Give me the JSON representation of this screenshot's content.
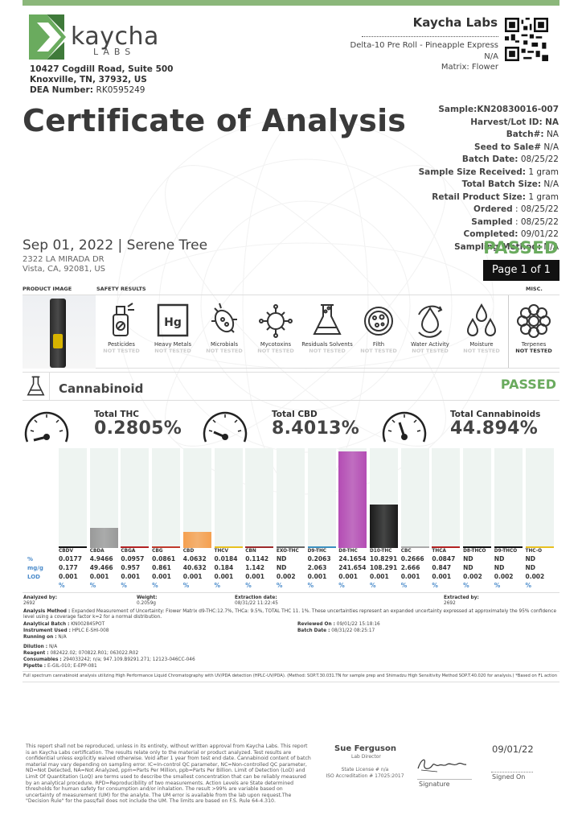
{
  "header": {
    "logo_name": "kaycha",
    "logo_sub": "LABS",
    "address_line1": "10427 Cogdill Road, Suite 500",
    "address_line2": "Knoxville, TN, 37932, US",
    "dea_label": "DEA Number:",
    "dea_value": "RK0595249",
    "lab_name": "Kaycha Labs",
    "product_name": "Delta-10 Pre Roll - Pineapple Express",
    "product_na": "N/A",
    "matrix": "Matrix: Flower"
  },
  "title": "Certificate of Analysis",
  "meta": {
    "sample": "Sample:KN20830016-007",
    "harvest_k": "Harvest/Lot ID:",
    "harvest_v": "NA",
    "batch_k": "Batch#:",
    "batch_v": "NA",
    "seed_k": "Seed to Sale#",
    "seed_v": "N/A",
    "batchdate_k": "Batch Date:",
    "batchdate_v": "08/25/22",
    "ssr_k": "Sample Size Received:",
    "ssr_v": "1 gram",
    "tbs_k": "Total Batch Size:",
    "tbs_v": "N/A",
    "rps_k": "Retail Product Size:",
    "rps_v": "1 gram",
    "ordered_k": "Ordered",
    "ordered_v": ": 08/25/22",
    "sampled_k": "Sampled",
    "sampled_v": ": 08/25/22",
    "completed_k": "Completed:",
    "completed_v": "09/01/22",
    "method_k": "Sampling Method:",
    "method_v": "N/A"
  },
  "client": {
    "title": "Sep 01, 2022 | Serene Tree",
    "addr1": "2322 LA MIRADA DR",
    "addr2": "Vista, CA, 92081, US"
  },
  "status": "PASSED",
  "page": "Page 1 of 1",
  "sections": {
    "product_image": "PRODUCT IMAGE",
    "safety": "SAFETY RESULTS",
    "misc": "MISC."
  },
  "safety_items": [
    {
      "name": "Pesticides",
      "status": "NOT TESTED",
      "icon": "spray-bottle-icon"
    },
    {
      "name": "Heavy Metals",
      "status": "NOT TESTED",
      "icon": "hg-element-icon"
    },
    {
      "name": "Microbials",
      "status": "NOT TESTED",
      "icon": "bacteria-icon"
    },
    {
      "name": "Mycotoxins",
      "status": "NOT TESTED",
      "icon": "virus-icon"
    },
    {
      "name": "Residuals Solvents",
      "status": "NOT TESTED",
      "icon": "flask-icon"
    },
    {
      "name": "Filth",
      "status": "NOT TESTED",
      "icon": "petri-dish-icon"
    },
    {
      "name": "Water Activity",
      "status": "NOT TESTED",
      "icon": "water-drop-icon"
    },
    {
      "name": "Moisture",
      "status": "NOT TESTED",
      "icon": "drops-icon"
    }
  ],
  "misc_item": {
    "name": "Terpenes",
    "status": "NOT TESTED",
    "icon": "flower-icon"
  },
  "cannabinoid": {
    "title": "Cannabinoid",
    "status": "PASSED",
    "total_thc_label": "Total THC",
    "total_thc": "0.2805%",
    "total_cbd_label": "Total CBD",
    "total_cbd": "8.4013%",
    "total_cann_label": "Total Cannabinoids",
    "total_cann": "44.894%"
  },
  "chart_data": {
    "type": "bar",
    "categories": [
      "CBDV",
      "CBDA",
      "CBGA",
      "CBG",
      "CBD",
      "THCV",
      "CBN",
      "EXO-THC",
      "D9-THC",
      "D8-THC",
      "D10-THC",
      "CBC",
      "THCA",
      "D8-THCO",
      "D9-THCO",
      "THC-O"
    ],
    "values": [
      0.0177,
      4.9466,
      0.0957,
      0.0861,
      4.0632,
      0.0184,
      0.1142,
      0,
      0.2063,
      24.1654,
      10.8291,
      0.2666,
      0.0847,
      0,
      0,
      0
    ],
    "colors": [
      "#111111",
      "#999999",
      "#b22222",
      "#c0392b",
      "#f5a050",
      "#e8c020",
      "#9e2a2a",
      "#666666",
      "#3a8fbf",
      "#b44cb4",
      "#1a1a1a",
      "#aaaaaa",
      "#b22222",
      "#111111",
      "#111111",
      "#e8c020"
    ],
    "ylim": [
      0,
      25
    ]
  },
  "table": {
    "row_pct": "%",
    "row_mg": "mg/g",
    "row_lod": "LOD",
    "pct": [
      "0.0177",
      "4.9466",
      "0.0957",
      "0.0861",
      "4.0632",
      "0.0184",
      "0.1142",
      "ND",
      "0.2063",
      "24.1654",
      "10.8291",
      "0.2666",
      "0.0847",
      "ND",
      "ND",
      "ND"
    ],
    "mg": [
      "0.177",
      "49.466",
      "0.957",
      "0.861",
      "40.632",
      "0.184",
      "1.142",
      "ND",
      "2.063",
      "241.654",
      "108.291",
      "2.666",
      "0.847",
      "ND",
      "ND",
      "ND"
    ],
    "lod": [
      "0.001",
      "0.001",
      "0.001",
      "0.001",
      "0.001",
      "0.001",
      "0.001",
      "0.002",
      "0.001",
      "0.001",
      "0.001",
      "0.001",
      "0.001",
      "0.002",
      "0.002",
      "0.002"
    ],
    "unit": "%"
  },
  "analysis": {
    "analyzed_by_k": "Analyzed by:",
    "analyzed_by_v": "2692",
    "weight_k": "Weight:",
    "weight_v": "0.2059g",
    "extraction_date_k": "Extraction date:",
    "extraction_date_v": "08/31/22 11:22:45",
    "extracted_by_k": "Extracted by:",
    "extracted_by_v": "2692",
    "method_k": "Analysis Method :",
    "method_v": "Expanded Measurement of Uncertainty: Flower Matrix d9-THC:12.7%, THCa: 9.5%, TOTAL THC 11. 1%. These uncertainties represent an expanded uncertainty expressed at approximately the 95% confidence level using a coverage factor k=2 for a normal distribution.",
    "batch_k": "Analytical Batch :",
    "batch_v": "KN002845POT",
    "instrument_k": "Instrument Used :",
    "instrument_v": "HPLC E-SHI-008",
    "running_k": "Running on :",
    "running_v": "N/A",
    "reviewed_k": "Reviewed On :",
    "reviewed_v": "09/01/22 15:18:16",
    "batchdate_k": "Batch Date :",
    "batchdate_v": "08/31/22 08:25:17",
    "dilution_k": "Dilution :",
    "dilution_v": "N/A",
    "reagent_k": "Reagent :",
    "reagent_v": "082422.02; 070822.R01; 063022.R02",
    "consumables_k": "Consumables :",
    "consumables_v": "294033242; n/a; 947.109.B9291.271; 12123-046CC-046",
    "pipette_k": "Pipette :",
    "pipette_v": "E-GIL-010; E-EPP-081",
    "note": "Full spectrum cannabinoid analysis utilizing High Performance Liquid Chromatography with UV/PDA detection (HPLC-UV/PDA). (Method: SOP.T.30.031.TN for sample prep and Shimadzu High Sensitivity Method SOP.T.40.020 for analysis.) *Based on FL action limits."
  },
  "footer": {
    "disclaimer": "This report shall not be reproduced, unless in its entirety, without written approval from Kaycha Labs. This report is an Kaycha Labs certification. The results relate only to the material or product analyzed. Test results are confidential unless explicitly waived otherwise. Void after 1 year from test end date. Cannabinoid content of batch material may vary depending on sampling error. IC=In-control QC parameter, NC=Non-controlled QC parameter, ND=Not Detected, NA=Not Analyzed, ppm=Parts Per Million, ppb=Parts Per Billion. Limit of Detection (LoD) and Limit Of Quantitation (LoQ) are terms used to describe the smallest concentration that can be reliably measured by an analytical procedure. RPD=Reproducibility of two measurements. Action Levels are State determined thresholds for human safety for consumption and/or inhalation. The result >99% are variable based on uncertainty of measurement (UM) for the analyte. The UM error is available from the lab upon request.The \"Decision Rule\" for the pass/fail does not include the UM. The limits are based on F.S. Rule 64-4.310.",
    "signer": "Sue Ferguson",
    "signer_role": "Lab Director",
    "license1": "State License # n/a",
    "license2": "ISO Accreditation # 17025:2017",
    "signature_cap": "Signature",
    "signed_date": "09/01/22",
    "signed_cap": "Signed On"
  }
}
